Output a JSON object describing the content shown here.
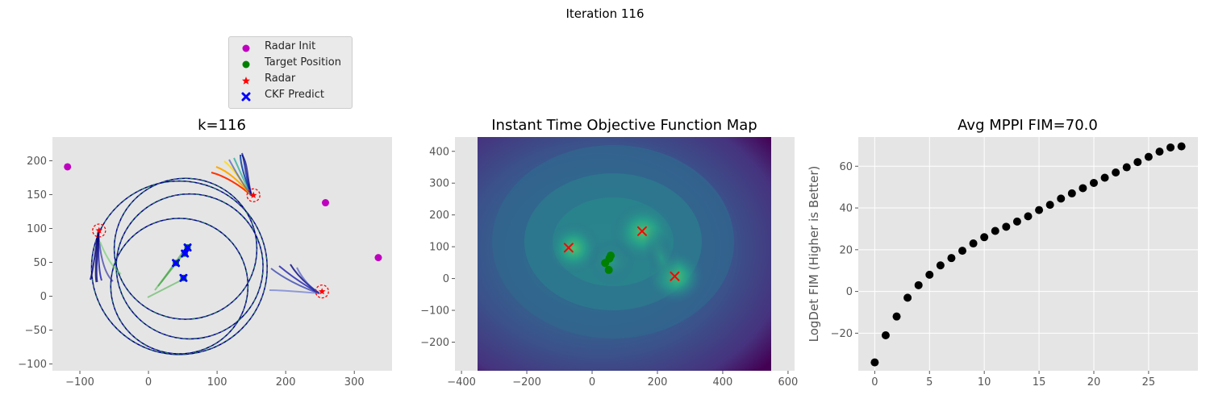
{
  "suptitle": "Iteration 116",
  "legend": {
    "items": [
      {
        "label": "Radar Init",
        "marker": "circle",
        "color": "#bf00bf"
      },
      {
        "label": "Target Position",
        "marker": "circle",
        "color": "#008000"
      },
      {
        "label": "Radar",
        "marker": "star",
        "color": "#ff0000"
      },
      {
        "label": "CKF Predict",
        "marker": "x",
        "color": "#0000ff"
      }
    ]
  },
  "colors": {
    "panel_bg": "#e5e5e5",
    "grid": "#ffffff",
    "tick_text": "#555555",
    "radar_init": "#bf00bf",
    "target": "#008000",
    "radar": "#ff0000",
    "ckf": "#0000ff",
    "orbit": "#00008b"
  },
  "chart_data": [
    {
      "type": "scatter",
      "title": "k=116",
      "xlabel": "",
      "ylabel": "",
      "xlim": [
        -140,
        355
      ],
      "ylim": [
        -110,
        235
      ],
      "xticks": [
        -100,
        0,
        100,
        200,
        300
      ],
      "yticks": [
        -100,
        -50,
        0,
        50,
        100,
        150,
        200
      ],
      "grid": false,
      "radar_init": [
        [
          -118,
          191
        ],
        [
          258,
          138
        ],
        [
          335,
          57
        ]
      ],
      "radars": [
        [
          -72,
          97
        ],
        [
          153,
          149
        ],
        [
          253,
          7
        ]
      ],
      "targets": [
        [
          40,
          49
        ],
        [
          51,
          27
        ],
        [
          53,
          63
        ],
        [
          57,
          72
        ]
      ],
      "ckf_predict": [
        [
          40,
          49
        ],
        [
          51,
          27
        ],
        [
          53,
          63
        ],
        [
          57,
          72
        ]
      ],
      "orbits": [
        {
          "cx": 45,
          "cy": 42,
          "r": 128
        },
        {
          "cx": 54,
          "cy": 70,
          "r": 104
        },
        {
          "cx": 60,
          "cy": 44,
          "r": 107
        },
        {
          "cx": 45,
          "cy": 15,
          "r": 100
        }
      ]
    },
    {
      "type": "heatmap",
      "title": "Instant Time Objective Function Map",
      "xlabel": "",
      "ylabel": "",
      "xlim": [
        -420,
        620
      ],
      "ylim": [
        -290,
        445
      ],
      "map_x": [
        -372,
        553
      ],
      "map_y": [
        -290,
        445
      ],
      "xticks": [
        -400,
        -200,
        0,
        200,
        400,
        600
      ],
      "yticks": [
        -200,
        -100,
        0,
        100,
        200,
        300,
        400
      ],
      "radars": [
        [
          -72,
          97
        ],
        [
          153,
          149
        ],
        [
          253,
          7
        ]
      ],
      "targets": [
        [
          40,
          49
        ],
        [
          51,
          27
        ],
        [
          53,
          63
        ],
        [
          57,
          72
        ]
      ]
    },
    {
      "type": "scatter",
      "title": "Avg MPPI FIM=70.0",
      "xlabel": "",
      "ylabel": "LogDet FIM (Higher is Better)",
      "xlim": [
        -1.5,
        29.5
      ],
      "ylim": [
        -38,
        74
      ],
      "xticks": [
        0,
        5,
        10,
        15,
        20,
        25
      ],
      "yticks": [
        -20,
        0,
        20,
        40,
        60
      ],
      "grid": true,
      "x": [
        0,
        1,
        2,
        3,
        4,
        5,
        6,
        7,
        8,
        9,
        10,
        11,
        12,
        13,
        14,
        15,
        16,
        17,
        18,
        19,
        20,
        21,
        22,
        23,
        24,
        25,
        26,
        27,
        28
      ],
      "y": [
        -34,
        -21,
        -12,
        -3,
        3,
        8,
        12.5,
        16,
        19.5,
        23,
        26,
        29,
        31,
        33.5,
        36,
        39,
        41.5,
        44.5,
        47,
        49.5,
        52,
        54.5,
        57,
        59.5,
        62,
        64.5,
        67,
        69,
        69.5
      ]
    }
  ]
}
